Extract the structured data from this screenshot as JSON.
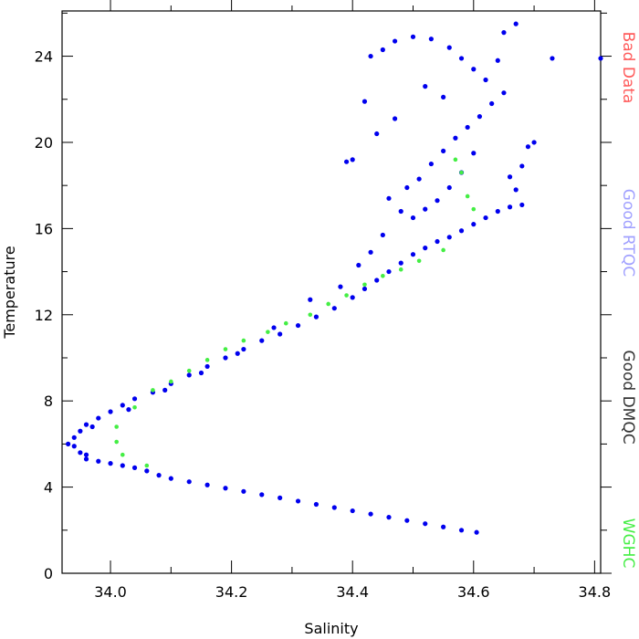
{
  "chart_data": {
    "type": "scatter",
    "xlabel": "Salinity",
    "ylabel": "Temperature",
    "xlim": [
      33.92,
      34.81
    ],
    "ylim": [
      0,
      26.1
    ],
    "x_ticks": [
      "34.0",
      "34.2",
      "34.4",
      "34.6",
      "34.8"
    ],
    "y_ticks": [
      "0",
      "4",
      "8",
      "12",
      "16",
      "20",
      "24"
    ],
    "x_tick_values": [
      34.0,
      34.2,
      34.4,
      34.6,
      34.8
    ],
    "y_tick_values": [
      0,
      4,
      8,
      12,
      16,
      20,
      24
    ],
    "grid": false,
    "legend_position": "right, vertical",
    "legend": [
      {
        "label": "Bad Data",
        "color": "#ff5a5a"
      },
      {
        "label": "Good RTQC",
        "color": "#a0a0ff"
      },
      {
        "label": "Good DMQC",
        "color": "#333333"
      },
      {
        "label": "WGHC",
        "color": "#44ee44"
      }
    ],
    "series": [
      {
        "color": "#0000ee",
        "points": [
          [
            34.605,
            1.9
          ],
          [
            34.58,
            2.0
          ],
          [
            34.55,
            2.15
          ],
          [
            34.52,
            2.3
          ],
          [
            34.49,
            2.45
          ],
          [
            34.46,
            2.6
          ],
          [
            34.43,
            2.75
          ],
          [
            34.4,
            2.9
          ],
          [
            34.37,
            3.05
          ],
          [
            34.34,
            3.2
          ],
          [
            34.31,
            3.35
          ],
          [
            34.28,
            3.5
          ],
          [
            34.25,
            3.65
          ],
          [
            34.22,
            3.8
          ],
          [
            34.19,
            3.95
          ],
          [
            34.16,
            4.1
          ],
          [
            34.13,
            4.25
          ],
          [
            34.1,
            4.4
          ],
          [
            34.08,
            4.55
          ],
          [
            34.06,
            4.75
          ],
          [
            34.04,
            4.9
          ],
          [
            34.02,
            5.0
          ],
          [
            34.0,
            5.1
          ],
          [
            33.98,
            5.2
          ],
          [
            33.96,
            5.3
          ],
          [
            33.95,
            5.6
          ],
          [
            33.94,
            5.9
          ],
          [
            33.93,
            6.0
          ],
          [
            33.94,
            6.3
          ],
          [
            33.95,
            6.6
          ],
          [
            33.96,
            6.9
          ],
          [
            33.98,
            7.2
          ],
          [
            34.0,
            7.5
          ],
          [
            34.02,
            7.8
          ],
          [
            34.04,
            8.1
          ],
          [
            34.07,
            8.4
          ],
          [
            34.1,
            8.8
          ],
          [
            34.13,
            9.2
          ],
          [
            34.16,
            9.6
          ],
          [
            34.19,
            10.0
          ],
          [
            34.22,
            10.4
          ],
          [
            34.25,
            10.8
          ],
          [
            34.28,
            11.1
          ],
          [
            34.31,
            11.5
          ],
          [
            34.34,
            11.9
          ],
          [
            34.37,
            12.3
          ],
          [
            34.4,
            12.8
          ],
          [
            34.42,
            13.2
          ],
          [
            34.44,
            13.6
          ],
          [
            34.46,
            14.0
          ],
          [
            34.48,
            14.4
          ],
          [
            34.5,
            14.8
          ],
          [
            34.52,
            15.1
          ],
          [
            34.54,
            15.4
          ],
          [
            34.56,
            15.6
          ],
          [
            34.58,
            15.9
          ],
          [
            34.6,
            16.2
          ],
          [
            34.62,
            16.5
          ],
          [
            34.64,
            16.8
          ],
          [
            34.66,
            17.0
          ],
          [
            34.68,
            17.1
          ],
          [
            34.67,
            17.8
          ],
          [
            34.66,
            18.4
          ],
          [
            34.68,
            18.9
          ],
          [
            34.69,
            19.8
          ],
          [
            34.6,
            19.5
          ],
          [
            34.58,
            18.6
          ],
          [
            34.56,
            17.9
          ],
          [
            34.54,
            17.3
          ],
          [
            34.52,
            16.9
          ],
          [
            34.5,
            16.5
          ],
          [
            34.48,
            16.8
          ],
          [
            34.46,
            17.4
          ],
          [
            34.49,
            17.9
          ],
          [
            34.51,
            18.3
          ],
          [
            34.53,
            19.0
          ],
          [
            34.55,
            19.6
          ],
          [
            34.57,
            20.2
          ],
          [
            34.59,
            20.7
          ],
          [
            34.61,
            21.2
          ],
          [
            34.63,
            21.8
          ],
          [
            34.65,
            22.3
          ],
          [
            34.62,
            22.9
          ],
          [
            34.6,
            23.4
          ],
          [
            34.58,
            23.9
          ],
          [
            34.56,
            24.4
          ],
          [
            34.53,
            24.8
          ],
          [
            34.5,
            24.9
          ],
          [
            34.47,
            24.7
          ],
          [
            34.45,
            24.3
          ],
          [
            34.43,
            24.0
          ],
          [
            34.52,
            22.6
          ],
          [
            34.55,
            22.1
          ],
          [
            34.47,
            21.1
          ],
          [
            34.44,
            20.4
          ],
          [
            34.42,
            21.9
          ],
          [
            34.4,
            19.2
          ],
          [
            34.39,
            19.1
          ],
          [
            34.64,
            23.8
          ],
          [
            34.65,
            25.1
          ],
          [
            34.67,
            25.5
          ],
          [
            34.73,
            23.9
          ],
          [
            34.81,
            23.9
          ],
          [
            34.7,
            20.0
          ],
          [
            34.45,
            15.7
          ],
          [
            34.43,
            14.9
          ],
          [
            34.41,
            14.3
          ],
          [
            34.38,
            13.3
          ],
          [
            34.33,
            12.7
          ],
          [
            34.27,
            11.4
          ],
          [
            34.21,
            10.2
          ],
          [
            34.15,
            9.3
          ],
          [
            34.09,
            8.5
          ],
          [
            34.03,
            7.6
          ],
          [
            33.97,
            6.8
          ],
          [
            33.96,
            5.5
          ]
        ]
      },
      {
        "color": "#44ee44",
        "points": [
          [
            34.01,
            6.1
          ],
          [
            34.01,
            6.8
          ],
          [
            34.02,
            5.5
          ],
          [
            34.04,
            7.7
          ],
          [
            34.06,
            5.0
          ],
          [
            34.07,
            8.5
          ],
          [
            34.1,
            8.9
          ],
          [
            34.13,
            9.4
          ],
          [
            34.16,
            9.9
          ],
          [
            34.19,
            10.4
          ],
          [
            34.22,
            10.8
          ],
          [
            34.26,
            11.2
          ],
          [
            34.29,
            11.6
          ],
          [
            34.33,
            12.0
          ],
          [
            34.36,
            12.5
          ],
          [
            34.39,
            12.9
          ],
          [
            34.42,
            13.4
          ],
          [
            34.45,
            13.8
          ],
          [
            34.48,
            14.1
          ],
          [
            34.51,
            14.5
          ],
          [
            34.55,
            15.0
          ],
          [
            34.57,
            19.2
          ],
          [
            34.58,
            18.6
          ],
          [
            34.59,
            17.5
          ],
          [
            34.6,
            16.9
          ]
        ]
      }
    ]
  }
}
